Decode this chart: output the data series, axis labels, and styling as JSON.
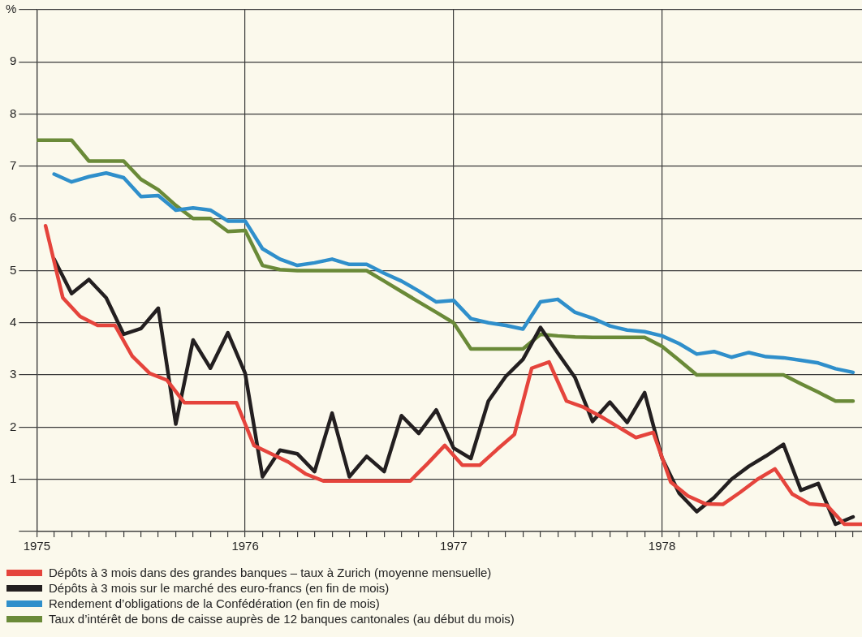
{
  "chart_data": {
    "type": "line",
    "xlim": [
      1975,
      1978.96
    ],
    "xticks": [
      1975,
      {
        "value": 1975.083,
        "label": null
      },
      {
        "value": 1975.167,
        "label": null
      },
      {
        "value": 1975.25,
        "label": null
      },
      {
        "value": 1975.333,
        "label": null
      },
      {
        "value": 1975.417,
        "label": null
      },
      {
        "value": 1975.5,
        "label": null
      },
      {
        "value": 1975.583,
        "label": null
      },
      {
        "value": 1975.667,
        "label": null
      },
      {
        "value": 1975.75,
        "label": null
      },
      {
        "value": 1975.833,
        "label": null
      },
      {
        "value": 1975.917,
        "label": null
      },
      1976,
      {
        "value": 1976.083,
        "label": null
      },
      {
        "value": 1976.167,
        "label": null
      },
      {
        "value": 1976.25,
        "label": null
      },
      {
        "value": 1976.333,
        "label": null
      },
      {
        "value": 1976.417,
        "label": null
      },
      {
        "value": 1976.5,
        "label": null
      },
      {
        "value": 1976.583,
        "label": null
      },
      {
        "value": 1976.667,
        "label": null
      },
      {
        "value": 1976.75,
        "label": null
      },
      {
        "value": 1976.833,
        "label": null
      },
      {
        "value": 1976.917,
        "label": null
      },
      1977,
      {
        "value": 1977.083,
        "label": null
      },
      {
        "value": 1977.167,
        "label": null
      },
      {
        "value": 1977.25,
        "label": null
      },
      {
        "value": 1977.333,
        "label": null
      },
      {
        "value": 1977.417,
        "label": null
      },
      {
        "value": 1977.5,
        "label": null
      },
      {
        "value": 1977.583,
        "label": null
      },
      {
        "value": 1977.667,
        "label": null
      },
      {
        "value": 1977.75,
        "label": null
      },
      {
        "value": 1977.833,
        "label": null
      },
      {
        "value": 1977.917,
        "label": null
      },
      1978,
      {
        "value": 1978.083,
        "label": null
      },
      {
        "value": 1978.167,
        "label": null
      },
      {
        "value": 1978.25,
        "label": null
      },
      {
        "value": 1978.333,
        "label": null
      },
      {
        "value": 1978.417,
        "label": null
      },
      {
        "value": 1978.5,
        "label": null
      },
      {
        "value": 1978.583,
        "label": null
      },
      {
        "value": 1978.667,
        "label": null
      },
      {
        "value": 1978.75,
        "label": null
      },
      {
        "value": 1978.833,
        "label": null
      },
      {
        "value": 1978.917,
        "label": null
      }
    ],
    "ylim": [
      0,
      10
    ],
    "yticks": [
      {
        "value": 0,
        "label": null
      },
      1,
      2,
      3,
      4,
      5,
      6,
      7,
      8,
      9,
      {
        "value": 10,
        "label": "%"
      }
    ],
    "grid": true,
    "legend": "bottom",
    "marker": "none",
    "line_style": "solid",
    "series": [
      {
        "name": "Dépôts à 3 mois dans des grandes banques – taux à Zurich (moyenne mensuelle)",
        "color": "#e5443c",
        "x": [
          1975.042,
          1975.125,
          1975.208,
          1975.292,
          1975.375,
          1975.458,
          1975.542,
          1975.625,
          1975.708,
          1975.792,
          1975.875,
          1975.958,
          1976.042,
          1976.125,
          1976.208,
          1976.292,
          1976.375,
          1976.458,
          1976.542,
          1976.625,
          1976.708,
          1976.792,
          1976.875,
          1976.958,
          1977.042,
          1977.125,
          1977.208,
          1977.292,
          1977.375,
          1977.458,
          1977.542,
          1977.625,
          1977.708,
          1977.792,
          1977.875,
          1977.958,
          1978.042,
          1978.125,
          1978.208,
          1978.292,
          1978.375,
          1978.458,
          1978.542,
          1978.625,
          1978.708,
          1978.792,
          1978.875,
          1978.958
        ],
        "values": [
          5.86,
          4.48,
          4.12,
          3.95,
          3.95,
          3.36,
          3.03,
          2.9,
          2.47,
          2.47,
          2.47,
          2.47,
          1.65,
          1.49,
          1.33,
          1.1,
          0.97,
          0.97,
          0.97,
          0.97,
          0.97,
          0.97,
          1.3,
          1.65,
          1.27,
          1.27,
          1.57,
          1.86,
          3.13,
          3.25,
          2.5,
          2.38,
          2.2,
          2.0,
          1.8,
          1.9,
          0.95,
          0.68,
          0.53,
          0.52,
          0.75,
          1.0,
          1.2,
          0.72,
          0.53,
          0.5,
          0.14,
          0.14
        ]
      },
      {
        "name": "Dépôts à 3 mois sur le marché des euro-francs (en fin de mois)",
        "color": "#231f20",
        "x": [
          1975.083,
          1975.167,
          1975.25,
          1975.333,
          1975.417,
          1975.5,
          1975.583,
          1975.667,
          1975.75,
          1975.833,
          1975.917,
          1976,
          1976.083,
          1976.167,
          1976.25,
          1976.333,
          1976.417,
          1976.5,
          1976.583,
          1976.667,
          1976.75,
          1976.833,
          1976.917,
          1977,
          1977.083,
          1977.167,
          1977.25,
          1977.333,
          1977.417,
          1977.5,
          1977.583,
          1977.667,
          1977.75,
          1977.833,
          1977.917,
          1978,
          1978.083,
          1978.167,
          1978.25,
          1978.333,
          1978.417,
          1978.5,
          1978.583,
          1978.667,
          1978.75,
          1978.833,
          1978.917
        ],
        "values": [
          5.22,
          4.56,
          4.83,
          4.48,
          3.78,
          3.89,
          4.28,
          2.06,
          3.67,
          3.13,
          3.81,
          3.03,
          1.05,
          1.56,
          1.49,
          1.15,
          2.27,
          1.05,
          1.44,
          1.15,
          2.22,
          1.88,
          2.33,
          1.6,
          1.4,
          2.5,
          2.97,
          3.3,
          3.91,
          3.42,
          2.95,
          2.11,
          2.48,
          2.09,
          2.66,
          1.41,
          0.73,
          0.38,
          0.65,
          1.0,
          1.25,
          1.45,
          1.67,
          0.79,
          0.92,
          0.14,
          0.28
        ]
      },
      {
        "name": "Rendement d’obligations de la Confédération (en fin de mois)",
        "color": "#2f8fcb",
        "x": [
          1975.083,
          1975.167,
          1975.25,
          1975.333,
          1975.417,
          1975.5,
          1975.583,
          1975.667,
          1975.75,
          1975.833,
          1975.917,
          1976,
          1976.083,
          1976.167,
          1976.25,
          1976.333,
          1976.417,
          1976.5,
          1976.583,
          1976.667,
          1976.75,
          1976.833,
          1976.917,
          1977,
          1977.083,
          1977.167,
          1977.25,
          1977.333,
          1977.417,
          1977.5,
          1977.583,
          1977.667,
          1977.75,
          1977.833,
          1977.917,
          1978,
          1978.083,
          1978.167,
          1978.25,
          1978.333,
          1978.417,
          1978.5,
          1978.583,
          1978.667,
          1978.75,
          1978.833,
          1978.917
        ],
        "values": [
          6.85,
          6.7,
          6.8,
          6.87,
          6.78,
          6.42,
          6.44,
          6.16,
          6.2,
          6.16,
          5.95,
          5.95,
          5.42,
          5.22,
          5.1,
          5.15,
          5.22,
          5.12,
          5.12,
          4.95,
          4.8,
          4.61,
          4.4,
          4.43,
          4.08,
          4.0,
          3.95,
          3.88,
          4.4,
          4.45,
          4.2,
          4.09,
          3.94,
          3.86,
          3.83,
          3.75,
          3.6,
          3.4,
          3.45,
          3.34,
          3.43,
          3.35,
          3.33,
          3.28,
          3.23,
          3.12,
          3.05
        ]
      },
      {
        "name": "Taux d’intérêt de bons de caisse auprès de 12 banques cantonales (au début du mois)",
        "color": "#6a8a38",
        "x": [
          1975,
          1975.083,
          1975.167,
          1975.25,
          1975.333,
          1975.417,
          1975.5,
          1975.583,
          1975.667,
          1975.75,
          1975.833,
          1975.917,
          1976,
          1976.083,
          1976.167,
          1976.25,
          1976.333,
          1976.417,
          1976.5,
          1976.583,
          1976.667,
          1976.75,
          1976.833,
          1976.917,
          1977,
          1977.083,
          1977.167,
          1977.25,
          1977.333,
          1977.417,
          1977.5,
          1977.583,
          1977.667,
          1977.75,
          1977.833,
          1977.917,
          1978,
          1978.083,
          1978.167,
          1978.25,
          1978.333,
          1978.417,
          1978.5,
          1978.583,
          1978.667,
          1978.75,
          1978.833,
          1978.917
        ],
        "values": [
          7.5,
          7.5,
          7.5,
          7.1,
          7.1,
          7.1,
          6.75,
          6.55,
          6.25,
          6.0,
          6.0,
          5.75,
          5.77,
          5.1,
          5.02,
          5.0,
          5.0,
          5.0,
          5.0,
          5.0,
          4.8,
          4.6,
          4.4,
          4.2,
          4.0,
          3.5,
          3.5,
          3.5,
          3.5,
          3.78,
          3.75,
          3.73,
          3.72,
          3.72,
          3.72,
          3.72,
          3.55,
          3.28,
          3.0,
          3.0,
          3.0,
          3.0,
          3.0,
          3.0,
          2.83,
          2.67,
          2.5,
          2.5
        ]
      }
    ]
  }
}
